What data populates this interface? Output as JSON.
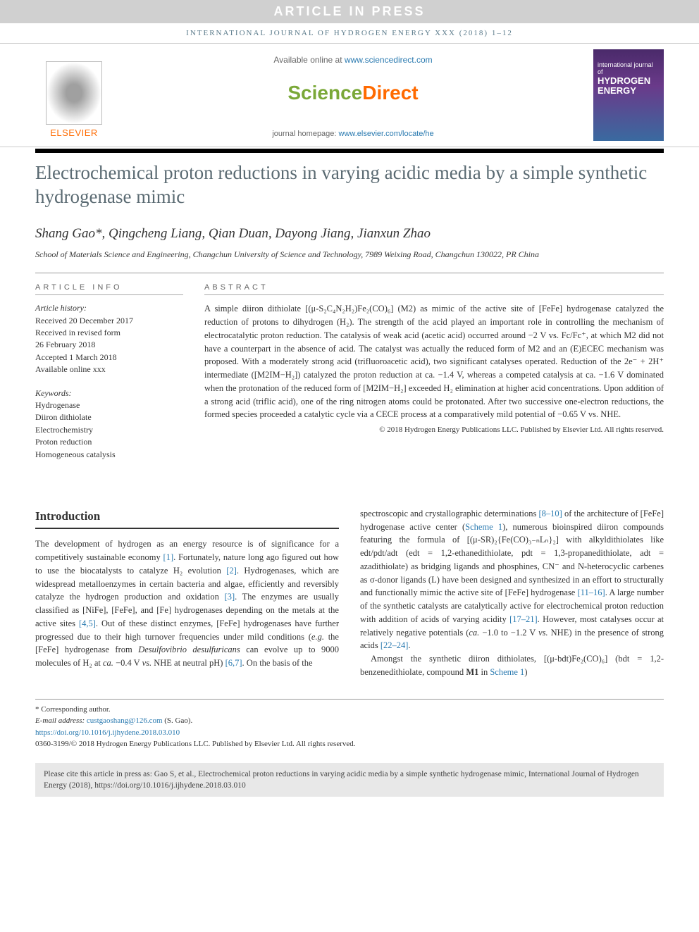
{
  "banner": {
    "text": "ARTICLE IN PRESS"
  },
  "journal_ref": "INTERNATIONAL JOURNAL OF HYDROGEN ENERGY XXX (2018) 1–12",
  "header": {
    "available_prefix": "Available online at ",
    "available_link": "www.sciencedirect.com",
    "sd_science": "Science",
    "sd_direct": "Direct",
    "homepage_prefix": "journal homepage: ",
    "homepage_link": "www.elsevier.com/locate/he",
    "elsevier_label": "ELSEVIER",
    "cover_small": "international journal of",
    "cover_big1": "HYDROGEN",
    "cover_big2": "ENERGY"
  },
  "title": "Electrochemical proton reductions in varying acidic media by a simple synthetic hydrogenase mimic",
  "authors_line": "Shang Gao*, Qingcheng Liang, Qian Duan, Dayong Jiang, Jianxun Zhao",
  "affiliation": "School of Materials Science and Engineering, Changchun University of Science and Technology, 7989 Weixing Road, Changchun 130022, PR China",
  "info": {
    "head": "ARTICLE INFO",
    "history_label": "Article history:",
    "received": "Received 20 December 2017",
    "revised1": "Received in revised form",
    "revised2": "26 February 2018",
    "accepted": "Accepted 1 March 2018",
    "online": "Available online xxx",
    "keywords_label": "Keywords:",
    "keywords": [
      "Hydrogenase",
      "Diiron dithiolate",
      "Electrochemistry",
      "Proton reduction",
      "Homogeneous catalysis"
    ]
  },
  "abstract": {
    "head": "ABSTRACT",
    "text": "A simple diiron dithiolate [(μ-S₂C₄N₂H₂)Fe₂(CO)₆] (M2) as mimic of the active site of [FeFe] hydrogenase catalyzed the reduction of protons to dihydrogen (H₂). The strength of the acid played an important role in controlling the mechanism of electrocatalytic proton reduction. The catalysis of weak acid (acetic acid) occurred around −2 V vs. Fc/Fc⁺, at which M2 did not have a counterpart in the absence of acid. The catalyst was actually the reduced form of M2 and an (E)ECEC mechanism was proposed. With a moderately strong acid (trifluoroacetic acid), two significant catalyses operated. Reduction of the 2e⁻ + 2H⁺ intermediate ([M2IM−H₂]) catalyzed the proton reduction at ca. −1.4 V, whereas a competed catalysis at ca. −1.6 V dominated when the protonation of the reduced form of [M2IM−H₂] exceeded H₂ elimination at higher acid concentrations. Upon addition of a strong acid (triflic acid), one of the ring nitrogen atoms could be protonated. After two successive one-electron reductions, the formed species proceeded a catalytic cycle via a CECE process at a comparatively mild potential of −0.65 V vs. NHE.",
    "copyright": "© 2018 Hydrogen Energy Publications LLC. Published by Elsevier Ltd. All rights reserved."
  },
  "intro": {
    "head": "Introduction",
    "col1_text": "The development of hydrogen as an energy resource is of significance for a competitively sustainable economy [1]. Fortunately, nature long ago figured out how to use the biocatalysts to catalyze H₂ evolution [2]. Hydrogenases, which are widespread metalloenzymes in certain bacteria and algae, efficiently and reversibly catalyze the hydrogen production and oxidation [3]. The enzymes are usually classified as [NiFe], [FeFe], and [Fe] hydrogenases depending on the metals at the active sites [4,5]. Out of these distinct enzymes, [FeFe] hydrogenases have further progressed due to their high turnover frequencies under mild conditions (e.g. the [FeFe] hydrogenase from Desulfovibrio desulfuricans can evolve up to 9000 molecules of H₂ at ca. −0.4 V vs. NHE at neutral pH) [6,7]. On the basis of the",
    "col2_p1": "spectroscopic and crystallographic determinations [8–10] of the architecture of [FeFe] hydrogenase active center (Scheme 1), numerous bioinspired diiron compounds featuring the formula of [(μ-SR)₂{Fe(CO)₃₋ₙLₙ}₂] with alkyldithiolates like edt/pdt/adt (edt = 1,2-ethanedithiolate, pdt = 1,3-propanedithiolate, adt = azadithiolate) as bridging ligands and phosphines, CN⁻ and N-heterocyclic carbenes as σ-donor ligands (L) have been designed and synthesized in an effort to structurally and functionally mimic the active site of [FeFe] hydrogenase [11–16]. A large number of the synthetic catalysts are catalytically active for electrochemical proton reduction with addition of acids of varying acidity [17–21]. However, most catalyses occur at relatively negative potentials (ca. −1.0 to −1.2 V vs. NHE) in the presence of strong acids [22–24].",
    "col2_p2": "Amongst the synthetic diiron dithiolates, [(μ-bdt)Fe₂(CO)₆] (bdt = 1,2-benzenedithiolate, compound M1 in Scheme 1)"
  },
  "footer": {
    "corr_label": "* Corresponding author.",
    "email_label": "E-mail address: ",
    "email": "custgaoshang@126.com",
    "email_suffix": " (S. Gao).",
    "doi": "https://doi.org/10.1016/j.ijhydene.2018.03.010",
    "issn_line": "0360-3199/© 2018 Hydrogen Energy Publications LLC. Published by Elsevier Ltd. All rights reserved."
  },
  "citebox": "Please cite this article in press as: Gao S, et al., Electrochemical proton reductions in varying acidic media by a simple synthetic hydrogenase mimic, International Journal of Hydrogen Energy (2018), https://doi.org/10.1016/j.ijhydene.2018.03.010",
  "colors": {
    "banner_bg": "#d0d0d0",
    "banner_fg": "#ffffff",
    "journal_ref": "#5a7a8a",
    "elsevier_orange": "#ff6a00",
    "sd_green": "#7aa838",
    "link_blue": "#2a7ab0",
    "title_grey": "#5a6a72",
    "cover_top": "#4a2a6a",
    "cover_bottom": "#3a6aa0",
    "citebox_bg": "#e8e8e8"
  },
  "ref_links": {
    "r1": "[1]",
    "r2": "[2]",
    "r3": "[3]",
    "r45": "[4,5]",
    "r67": "[6,7]",
    "r810": "[8–10]",
    "scheme1a": "Scheme 1",
    "r1116": "[11–16]",
    "r1721": "[17–21]",
    "r2224": "[22–24]",
    "scheme1b": "Scheme 1"
  }
}
